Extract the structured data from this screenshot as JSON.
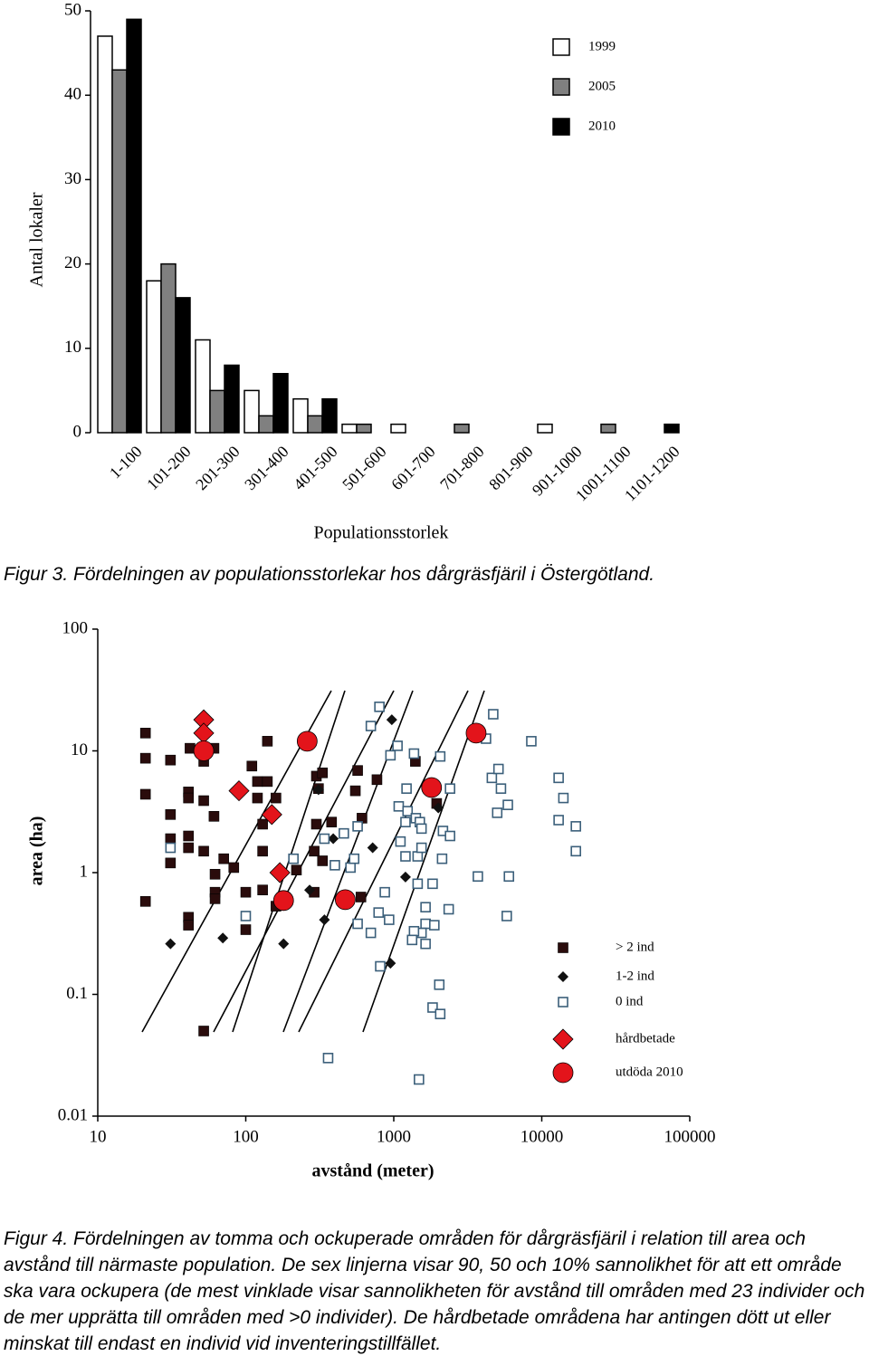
{
  "chart_data": [
    {
      "type": "bar",
      "xlabel": "Populationsstorlek",
      "ylabel": "Antal lokaler",
      "categories": [
        "1-100",
        "101-200",
        "201-300",
        "301-400",
        "401-500",
        "501-600",
        "601-700",
        "701-800",
        "801-900",
        "901-1000",
        "1001-1100",
        "1101-1200"
      ],
      "series": [
        {
          "name": "1999",
          "color": "#ffffff",
          "values": [
            47,
            18,
            11,
            5,
            4,
            1,
            1,
            0,
            0,
            1,
            0,
            0
          ]
        },
        {
          "name": "2005",
          "color": "#808080",
          "values": [
            43,
            20,
            5,
            2,
            2,
            1,
            0,
            1,
            0,
            0,
            1,
            0
          ]
        },
        {
          "name": "2010",
          "color": "#000000",
          "values": [
            49,
            16,
            8,
            7,
            4,
            0,
            0,
            0,
            0,
            0,
            0,
            1
          ]
        }
      ],
      "ylim": [
        0,
        50
      ],
      "yticks": [
        0,
        10,
        20,
        30,
        40,
        50
      ],
      "grid": false,
      "legend": "upper right",
      "caption": "Figur 3. Fördelningen av populationsstorlekar hos dårgräsfjäril i Östergötland."
    },
    {
      "type": "scatter",
      "xlabel": "avstånd (meter)",
      "ylabel": "area (ha)",
      "xscale": "log",
      "yscale": "log",
      "xlim": [
        10,
        100000
      ],
      "ylim": [
        0.01,
        100
      ],
      "xticks": [
        10,
        100,
        1000,
        10000,
        100000
      ],
      "yticks": [
        0.01,
        0.1,
        1,
        10,
        100
      ],
      "grid": false,
      "legend": "right",
      "series": [
        {
          "name": "> 2 ind",
          "marker": "square",
          "color": "#2a0c0c",
          "x": [
            21,
            21,
            21,
            21,
            31,
            31,
            31,
            31,
            41,
            41,
            41,
            41,
            41,
            41,
            52,
            52,
            52,
            52,
            42,
            61,
            61,
            62,
            62,
            62,
            71,
            83,
            110,
            120,
            120,
            140,
            140,
            160,
            130,
            130,
            100,
            100,
            130,
            160,
            180,
            220,
            290,
            300,
            300,
            330,
            330,
            380,
            290,
            570,
            550,
            610,
            600,
            770,
            1400,
            1950,
            310
          ],
          "y": [
            14,
            8.7,
            4.4,
            0.58,
            8.4,
            3,
            1.9,
            1.2,
            4.6,
            4.1,
            2.0,
            1.6,
            0.43,
            0.37,
            8.2,
            3.9,
            1.5,
            0.05,
            10.5,
            10.5,
            2.9,
            0.97,
            0.69,
            0.61,
            1.3,
            1.1,
            7.5,
            5.6,
            4.1,
            5.6,
            12,
            4.1,
            1.5,
            2.5,
            0.69,
            0.34,
            0.72,
            0.53,
            0.63,
            1.05,
            1.5,
            2.5,
            6.2,
            6.6,
            1.25,
            2.6,
            0.69,
            6.9,
            4.7,
            2.8,
            0.63,
            5.8,
            8.2,
            3.7,
            4.9
          ]
        },
        {
          "name": "1-2 ind",
          "marker": "diamond",
          "color": "#111111",
          "x": [
            31,
            70,
            50,
            180,
            190,
            270,
            310,
            340,
            390,
            970,
            950,
            1200,
            2000,
            720
          ],
          "y": [
            0.26,
            0.29,
            18,
            0.26,
            0.58,
            0.72,
            4.8,
            0.41,
            1.9,
            18,
            0.18,
            0.92,
            3.4,
            1.6
          ]
        },
        {
          "name": "0 ind",
          "marker": "open-square",
          "color": "#3b5f7a",
          "x": [
            31,
            100,
            210,
            270,
            360,
            340,
            400,
            460,
            510,
            540,
            570,
            570,
            700,
            700,
            800,
            810,
            790,
            870,
            930,
            950,
            1060,
            1080,
            1110,
            1200,
            1200,
            1220,
            1240,
            1370,
            1410,
            1450,
            1450,
            1480,
            1500,
            1540,
            1540,
            1640,
            1640,
            1640,
            1540,
            1370,
            1330,
            1800,
            1830,
            1880,
            1830,
            2030,
            2060,
            2060,
            2120,
            2150,
            2400,
            2400,
            2350,
            3700,
            4200,
            4700,
            4600,
            5100,
            5300,
            5000,
            5900,
            6000,
            5800,
            8500,
            13000,
            14000,
            13000,
            17000,
            17000
          ],
          "y": [
            1.6,
            0.44,
            1.3,
            12,
            0.03,
            1.9,
            1.15,
            2.1,
            1.1,
            1.3,
            2.4,
            0.38,
            0.32,
            16,
            23,
            0.17,
            0.47,
            0.69,
            0.41,
            9.2,
            11,
            3.5,
            1.8,
            1.36,
            2.6,
            4.9,
            3.2,
            9.5,
            2.8,
            1.36,
            0.81,
            0.02,
            2.6,
            2.3,
            1.6,
            0.52,
            0.38,
            0.26,
            0.32,
            0.33,
            0.28,
            5.0,
            0.81,
            0.37,
            0.078,
            0.12,
            0.069,
            9,
            1.3,
            2.2,
            4.9,
            2.0,
            0.5,
            0.93,
            12.6,
            20,
            6,
            7.1,
            4.9,
            3.1,
            3.6,
            0.93,
            0.44,
            12,
            6,
            4.1,
            2.7,
            2.4,
            1.5
          ]
        },
        {
          "name": "hårdbetade",
          "marker": "big-diamond",
          "color": "#e3141b",
          "x": [
            52,
            52,
            90,
            150,
            170
          ],
          "y": [
            18,
            14,
            4.7,
            3,
            1.0
          ]
        },
        {
          "name": "utdöda 2010",
          "marker": "circle",
          "color": "#e3141b",
          "x": [
            52,
            260,
            180,
            470,
            1800,
            3600
          ],
          "y": [
            10,
            12,
            0.59,
            0.6,
            5,
            14
          ]
        }
      ],
      "caption": "Figur 4. Fördelningen av tomma och ockuperade områden för dårgräsfjäril i relation till area och avstånd till närmaste population. De sex linjerna visar 90, 50 och 10% sannolikhet för att ett område ska vara ockupera (de mest vinklade visar sannolikheten för avstånd till områden med 23 individer och de mer upprätta till områden med >0 individer). De hårdbetade områdena har antingen dött ut eller minskat till endast en individ vid inventeringstillfället."
    }
  ]
}
